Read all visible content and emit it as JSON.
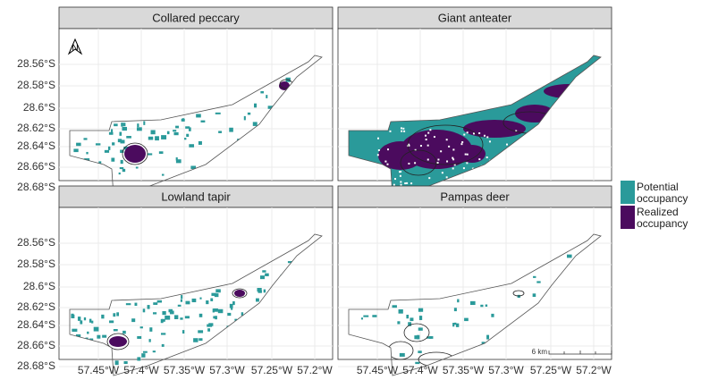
{
  "panels": [
    {
      "title": "Collared peccary"
    },
    {
      "title": "Giant anteater"
    },
    {
      "title": "Lowland tapir"
    },
    {
      "title": "Pampas deer"
    }
  ],
  "y_labels": [
    "28.56°S",
    "28.58°S",
    "28.6°S",
    "28.62°S",
    "28.64°S",
    "28.66°S",
    "28.68°S"
  ],
  "x_labels": [
    "57.45°W",
    "57.4°W",
    "57.35°W",
    "57.3°W",
    "57.25°W",
    "57.2°W"
  ],
  "north_arrow": "N",
  "scale_bar": "6 km",
  "legend": [
    {
      "label": "Potential occupancy",
      "color": "#2a9a9a"
    },
    {
      "label": "Realized occupancy",
      "color": "#4b0b5e"
    }
  ]
}
